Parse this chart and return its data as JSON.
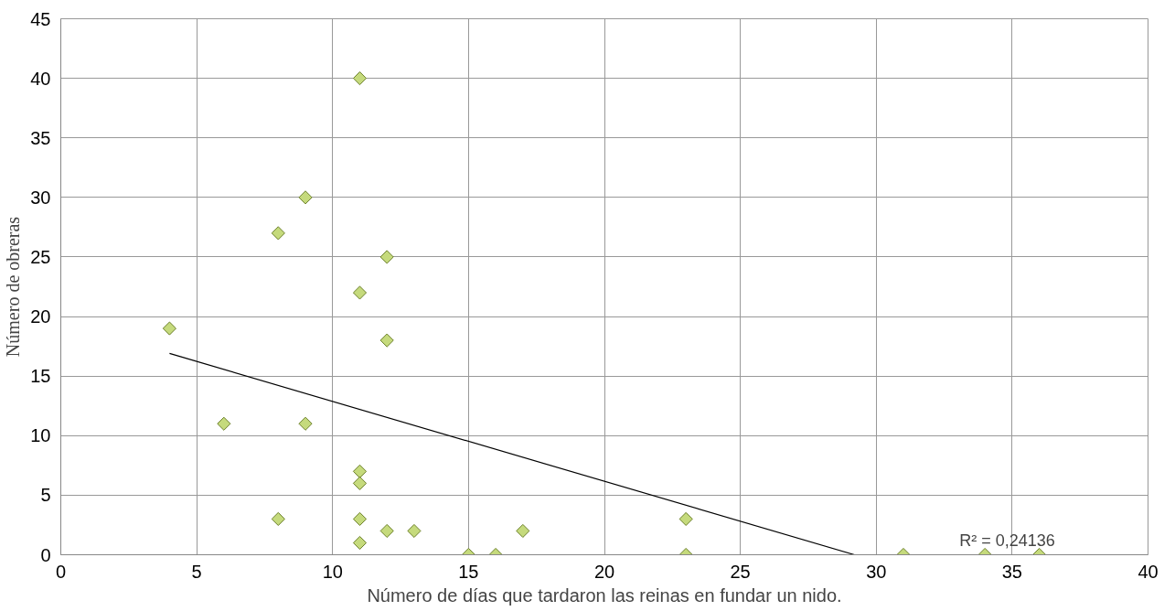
{
  "chart_data": {
    "type": "scatter",
    "xlabel": "Número de días que tardaron las reinas en fundar un nido.",
    "ylabel": "Número de obreras",
    "xlim": [
      0,
      40
    ],
    "ylim": [
      0,
      45
    ],
    "xticks": [
      0,
      5,
      10,
      15,
      20,
      25,
      30,
      35,
      40
    ],
    "yticks": [
      0,
      5,
      10,
      15,
      20,
      25,
      30,
      35,
      40,
      45
    ],
    "grid": true,
    "annotations": [
      "R² = 0,24136"
    ],
    "series": [
      {
        "marker": "diamond",
        "color": "#c5da7c",
        "x": [
          4,
          6,
          8,
          8,
          9,
          9,
          11,
          11,
          11,
          11,
          11,
          11,
          12,
          12,
          12,
          13,
          15,
          16,
          17,
          23,
          23,
          31,
          34,
          36
        ],
        "values": [
          19,
          11,
          27,
          3,
          30,
          11,
          40,
          22,
          7,
          6,
          3,
          1,
          25,
          18,
          2,
          2,
          0,
          0,
          2,
          3,
          0,
          0,
          0,
          0
        ]
      },
      {
        "type": "line",
        "color": "#000000",
        "x": [
          4,
          29.2
        ],
        "values": [
          16.9,
          0
        ]
      }
    ]
  }
}
